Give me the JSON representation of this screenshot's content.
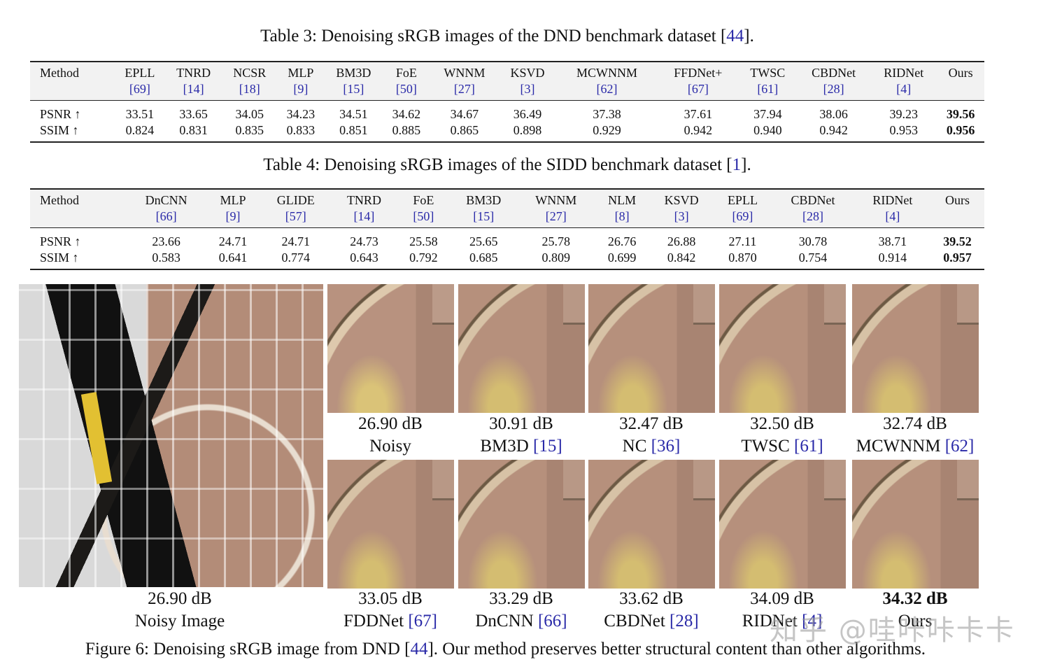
{
  "table3": {
    "caption_prefix": "Table 3: Denoising sRGB images of the DND benchmark dataset [",
    "caption_ref": "44",
    "caption_suffix": "].",
    "header_label": "Method",
    "methods": [
      {
        "name": "EPLL",
        "ref": "[69]"
      },
      {
        "name": "TNRD",
        "ref": "[14]"
      },
      {
        "name": "NCSR",
        "ref": "[18]"
      },
      {
        "name": "MLP",
        "ref": "[9]"
      },
      {
        "name": "BM3D",
        "ref": "[15]"
      },
      {
        "name": "FoE",
        "ref": "[50]"
      },
      {
        "name": "WNNM",
        "ref": "[27]"
      },
      {
        "name": "KSVD",
        "ref": "[3]"
      },
      {
        "name": "MCWNNM",
        "ref": "[62]"
      },
      {
        "name": "FFDNet+",
        "ref": "[67]"
      },
      {
        "name": "TWSC",
        "ref": "[61]"
      },
      {
        "name": "CBDNet",
        "ref": "[28]"
      },
      {
        "name": "RIDNet",
        "ref": "[4]"
      },
      {
        "name": "Ours",
        "ref": ""
      }
    ],
    "rows": [
      {
        "label": "PSNR ↑",
        "values": [
          "33.51",
          "33.65",
          "34.05",
          "34.23",
          "34.51",
          "34.62",
          "34.67",
          "36.49",
          "37.38",
          "37.61",
          "37.94",
          "38.06",
          "39.23",
          "39.56"
        ]
      },
      {
        "label": "SSIM ↑",
        "values": [
          "0.824",
          "0.831",
          "0.835",
          "0.833",
          "0.851",
          "0.885",
          "0.865",
          "0.898",
          "0.929",
          "0.942",
          "0.940",
          "0.942",
          "0.953",
          "0.956"
        ]
      }
    ]
  },
  "table4": {
    "caption_prefix": "Table 4: Denoising sRGB images of the SIDD benchmark dataset [",
    "caption_ref": "1",
    "caption_suffix": "].",
    "header_label": "Method",
    "methods": [
      {
        "name": "DnCNN",
        "ref": "[66]"
      },
      {
        "name": "MLP",
        "ref": "[9]"
      },
      {
        "name": "GLIDE",
        "ref": "[57]"
      },
      {
        "name": "TNRD",
        "ref": "[14]"
      },
      {
        "name": "FoE",
        "ref": "[50]"
      },
      {
        "name": "BM3D",
        "ref": "[15]"
      },
      {
        "name": "WNNM",
        "ref": "[27]"
      },
      {
        "name": "NLM",
        "ref": "[8]"
      },
      {
        "name": "KSVD",
        "ref": "[3]"
      },
      {
        "name": "EPLL",
        "ref": "[69]"
      },
      {
        "name": "CBDNet",
        "ref": "[28]"
      },
      {
        "name": "RIDNet",
        "ref": "[4]"
      },
      {
        "name": "Ours",
        "ref": ""
      }
    ],
    "rows": [
      {
        "label": "PSNR ↑",
        "values": [
          "23.66",
          "24.71",
          "24.71",
          "24.73",
          "25.58",
          "25.65",
          "25.78",
          "26.76",
          "26.88",
          "27.11",
          "30.78",
          "38.71",
          "39.52"
        ]
      },
      {
        "label": "SSIM ↑",
        "values": [
          "0.583",
          "0.641",
          "0.774",
          "0.643",
          "0.792",
          "0.685",
          "0.809",
          "0.699",
          "0.842",
          "0.870",
          "0.754",
          "0.914",
          "0.957"
        ]
      }
    ]
  },
  "figure6": {
    "big": {
      "psnr": "26.90 dB",
      "name": "Noisy Image"
    },
    "crops_top": [
      {
        "psnr": "26.90 dB",
        "name": "Noisy",
        "ref": ""
      },
      {
        "psnr": "30.91 dB",
        "name": "BM3D ",
        "ref": "[15]"
      },
      {
        "psnr": "32.47 dB",
        "name": "NC ",
        "ref": "[36]"
      },
      {
        "psnr": "32.50 dB",
        "name": "TWSC ",
        "ref": "[61]"
      },
      {
        "psnr": "32.74 dB",
        "name": "MCWNNM ",
        "ref": "[62]"
      }
    ],
    "crops_bottom": [
      {
        "psnr": "33.05 dB",
        "name": "FDDNet ",
        "ref": "[67]"
      },
      {
        "psnr": "33.29 dB",
        "name": "DnCNN ",
        "ref": "[66]"
      },
      {
        "psnr": "33.62 dB",
        "name": "CBDNet ",
        "ref": "[28]"
      },
      {
        "psnr": "34.09 dB",
        "name": "RIDNet ",
        "ref": "[4]"
      },
      {
        "psnr": "34.32 dB",
        "name": "Ours",
        "ref": ""
      }
    ],
    "caption_prefix": "Figure 6: Denoising sRGB image from DND [",
    "caption_ref": "44",
    "caption_suffix": "]. Our method preserves better structural content than other algorithms."
  },
  "watermark": "知乎 @哇咔咔卡卡"
}
